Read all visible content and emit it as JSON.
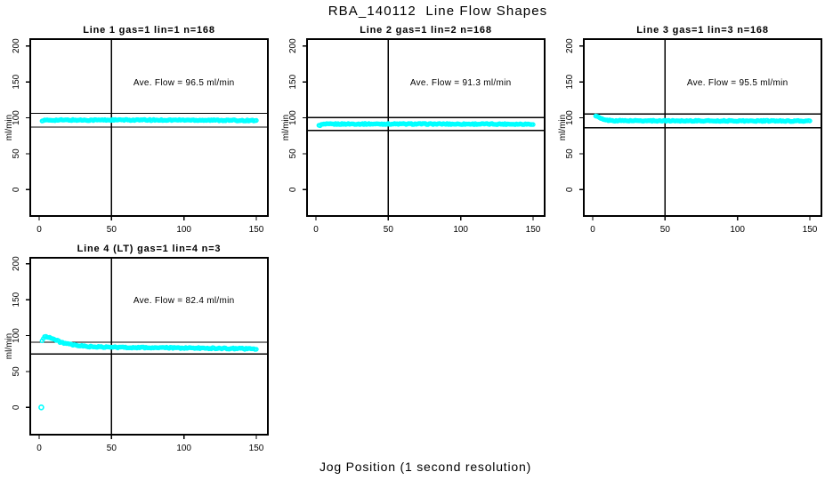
{
  "page": {
    "title": "RBA_140112  Line Flow Shapes",
    "xlabel": "Jog Position (1 second resolution)"
  },
  "chart_data": {
    "type": "scatter",
    "layout": "2 rows x 3 cols grid, cells 1-4 used; shared style R base plot",
    "x_ticks": [
      0,
      50,
      100,
      150
    ],
    "y_ticks": [
      0,
      50,
      100,
      150,
      200
    ],
    "x_range_rendered": [
      2,
      150
    ],
    "ylim_rendered": [
      -36,
      210
    ],
    "ylabel": "ml/min",
    "point_color": "#00FFFF",
    "axis_color": "#000000",
    "background": "#FFFFFF",
    "vline_x": 50,
    "annotation_pos": {
      "x": 100,
      "y": 150
    },
    "grid": false,
    "subplots": [
      {
        "title": "Line 1 gas=1 lin=1 n=168",
        "annotation": "Ave. Flow =  96.5  ml/min",
        "ave_flow": 96.5,
        "n": 168,
        "ref_lines": [
          106.2,
          86.9
        ],
        "profile": [
          [
            2,
            96.3
          ],
          [
            10,
            96.8
          ],
          [
            60,
            96.9
          ],
          [
            110,
            96.8
          ],
          [
            150,
            96.2
          ]
        ],
        "noise": 0.8,
        "outliers": []
      },
      {
        "title": "Line 2 gas=1 lin=2 n=168",
        "annotation": "Ave. Flow =  91.3  ml/min",
        "ave_flow": 91.3,
        "n": 168,
        "ref_lines": [
          100.4,
          82.2
        ],
        "profile": [
          [
            2,
            89.0
          ],
          [
            5,
            91.0
          ],
          [
            20,
            91.4
          ],
          [
            90,
            91.3
          ],
          [
            150,
            91.2
          ]
        ],
        "noise": 0.8,
        "outliers": []
      },
      {
        "title": "Line 3 gas=1 lin=3 n=168",
        "annotation": "Ave. Flow =  95.5  ml/min",
        "ave_flow": 95.5,
        "n": 168,
        "ref_lines": [
          105.1,
          86.0
        ],
        "profile": [
          [
            2,
            103.0
          ],
          [
            3,
            102.0
          ],
          [
            5,
            99.5
          ],
          [
            8,
            97.0
          ],
          [
            14,
            96.0
          ],
          [
            60,
            95.8
          ],
          [
            150,
            95.5
          ]
        ],
        "noise": 0.7,
        "outliers": []
      },
      {
        "title": "Line 4 (LT) gas=1 lin=4 n=3",
        "annotation": "Ave. Flow =  82.4  ml/min",
        "ave_flow": 82.4,
        "n": 3,
        "ref_lines": [
          90.6,
          74.2
        ],
        "profile": [
          [
            2,
            92.5
          ],
          [
            3,
            96.5
          ],
          [
            4,
            98.5
          ],
          [
            5,
            99.0
          ],
          [
            7,
            97.5
          ],
          [
            10,
            95.0
          ],
          [
            14,
            91.5
          ],
          [
            19,
            88.5
          ],
          [
            25,
            86.3
          ],
          [
            32,
            85.0
          ],
          [
            42,
            84.0
          ],
          [
            55,
            83.6
          ],
          [
            75,
            83.2
          ],
          [
            100,
            82.7
          ],
          [
            125,
            82.2
          ],
          [
            150,
            81.4
          ]
        ],
        "noise": 0.9,
        "outliers": [
          [
            1.5,
            0
          ]
        ]
      }
    ]
  }
}
